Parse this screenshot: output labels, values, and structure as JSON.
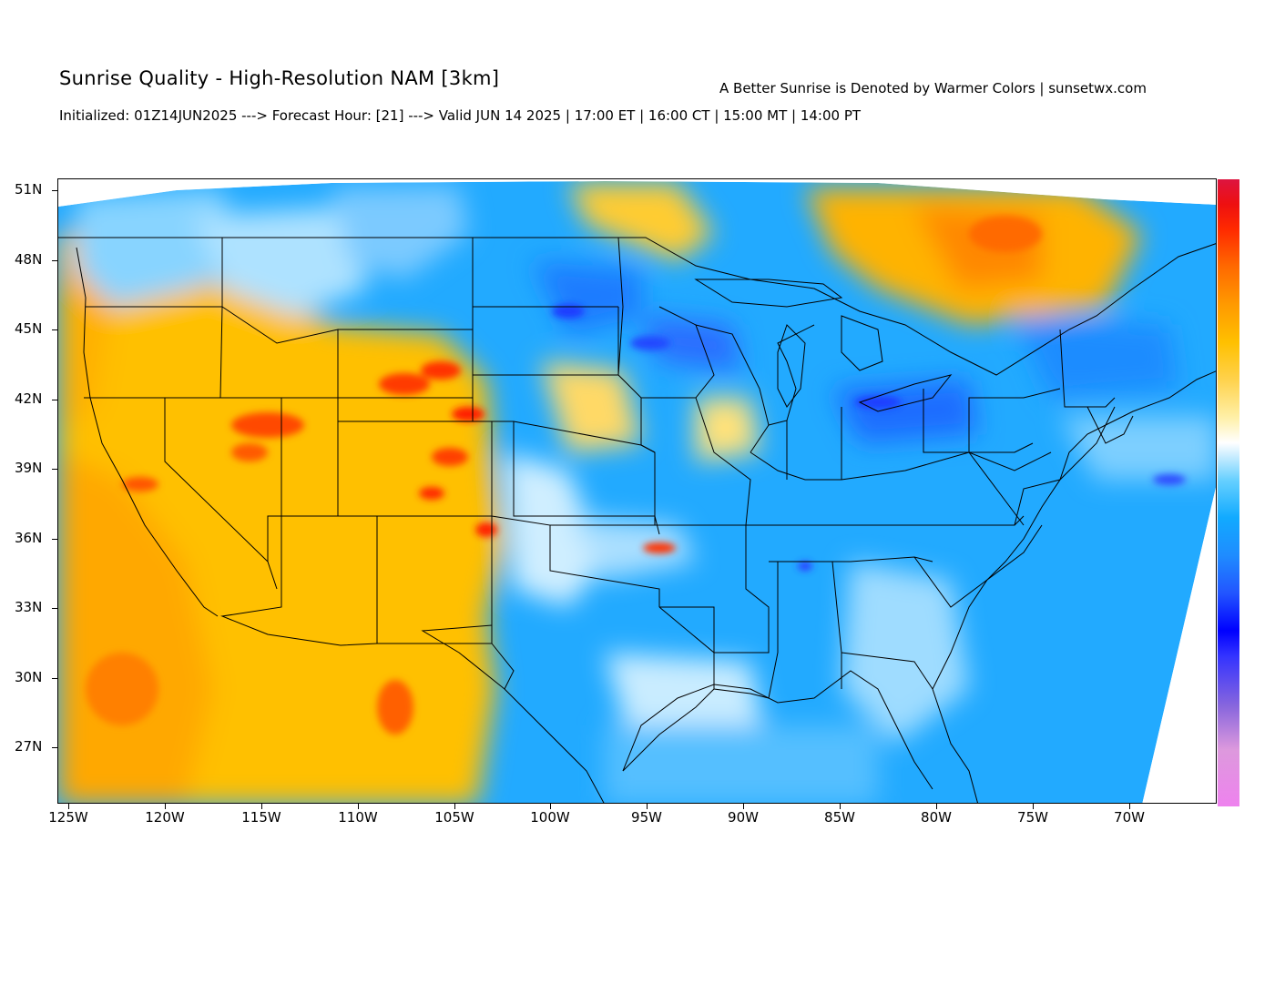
{
  "header": {
    "title": "Sunrise Quality - High-Resolution NAM [3km]",
    "subtitle": "Initialized: 01Z14JUN2025 ---> Forecast Hour: [21] ---> Valid JUN 14 2025 | 17:00 ET | 16:00 CT | 15:00 MT | 14:00 PT",
    "credit": "A Better Sunrise is Denoted by Warmer Colors | sunsetwx.com"
  },
  "axes": {
    "lat_labels": [
      "51N",
      "48N",
      "45N",
      "42N",
      "39N",
      "36N",
      "33N",
      "30N",
      "27N"
    ],
    "lon_labels": [
      "125W",
      "120W",
      "115W",
      "110W",
      "105W",
      "100W",
      "95W",
      "90W",
      "85W",
      "80W",
      "75W",
      "70W"
    ]
  },
  "colorbar": {
    "colors": [
      "#ee82ee",
      "#cc88dd",
      "#8866dd",
      "#3333ff",
      "#0000ff",
      "#2255ff",
      "#1f8cff",
      "#11aaff",
      "#44c4ff",
      "#aee6ff",
      "#ffffff",
      "#fff0a8",
      "#ffd24d",
      "#ffc000",
      "#ff9a00",
      "#ff6a00",
      "#ff2a00",
      "#ee1010",
      "#dd1440"
    ]
  },
  "palette": {
    "warm": "#ffc000",
    "cool": "#1fa8ff",
    "hot": "#ff3000",
    "cold": "#1f3cff"
  }
}
